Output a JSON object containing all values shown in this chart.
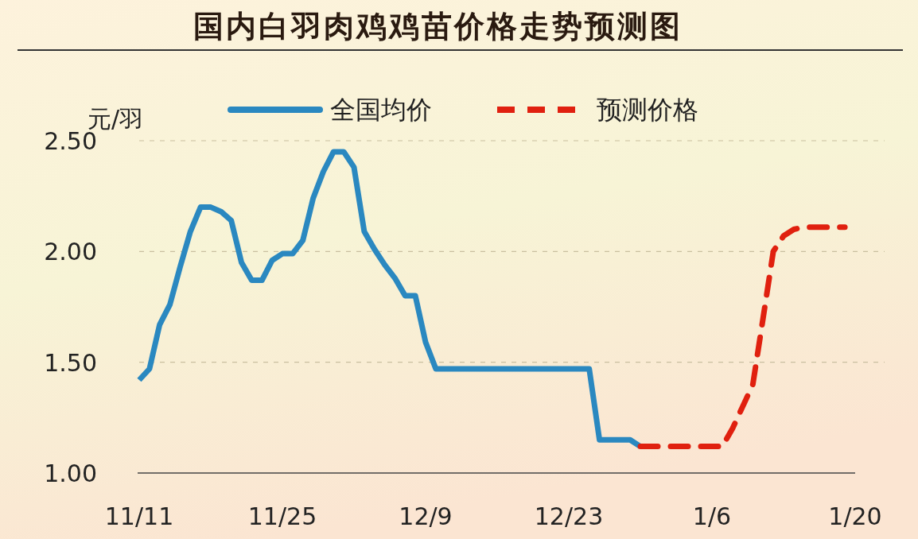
{
  "chart_data": {
    "type": "line",
    "title": "国内白羽肉鸡鸡苗价格走势预测图",
    "ylabel": "元/羽",
    "categories": [
      "11/11",
      null,
      null,
      null,
      null,
      null,
      null,
      null,
      null,
      null,
      null,
      null,
      null,
      null,
      "11/25",
      null,
      null,
      null,
      null,
      null,
      null,
      null,
      null,
      null,
      null,
      null,
      null,
      null,
      "12/9",
      null,
      null,
      null,
      null,
      null,
      null,
      null,
      null,
      null,
      null,
      null,
      null,
      null,
      "12/23",
      null,
      null,
      null,
      null,
      null,
      null,
      null,
      null,
      null,
      null,
      null,
      null,
      null,
      "1/6",
      null,
      null,
      null,
      null,
      null,
      null,
      null,
      null,
      null,
      null,
      null,
      null,
      null,
      "1/20"
    ],
    "ylim": [
      1,
      2.5
    ],
    "yticks": [
      {
        "value": 1,
        "label": "1.00"
      },
      {
        "value": 1.5,
        "label": "1.50"
      },
      {
        "value": 2,
        "label": "2.00"
      },
      {
        "value": 2.5,
        "label": "2.50"
      }
    ],
    "grid": "y",
    "legend": "top",
    "marker": "none",
    "series": [
      {
        "name": "全国均价",
        "color": "#2a88c0",
        "line_style": "solid",
        "values": [
          1.42,
          1.47,
          1.67,
          1.76,
          1.93,
          2.09,
          2.2,
          2.2,
          2.18,
          2.14,
          1.95,
          1.87,
          1.87,
          1.96,
          1.99,
          1.99,
          2.05,
          2.24,
          2.36,
          2.45,
          2.45,
          2.38,
          2.09,
          2.01,
          1.94,
          1.88,
          1.8,
          1.8,
          1.59,
          1.47,
          1.47,
          1.47,
          1.47,
          1.47,
          1.47,
          1.47,
          1.47,
          1.47,
          1.47,
          1.47,
          1.47,
          1.47,
          1.47,
          1.47,
          1.47,
          1.15,
          1.15,
          1.15,
          1.15,
          1.12,
          null,
          null,
          null,
          null,
          null,
          null,
          null,
          null,
          null,
          null,
          null,
          null,
          null,
          null,
          null,
          null,
          null,
          null,
          null,
          null,
          null
        ]
      },
      {
        "name": "预测价格",
        "color": "#e0200f",
        "line_style": "dashed",
        "values": [
          null,
          null,
          null,
          null,
          null,
          null,
          null,
          null,
          null,
          null,
          null,
          null,
          null,
          null,
          null,
          null,
          null,
          null,
          null,
          null,
          null,
          null,
          null,
          null,
          null,
          null,
          null,
          null,
          null,
          null,
          null,
          null,
          null,
          null,
          null,
          null,
          null,
          null,
          null,
          null,
          null,
          null,
          null,
          null,
          null,
          null,
          null,
          null,
          null,
          1.12,
          1.12,
          1.12,
          1.12,
          1.12,
          1.12,
          1.12,
          1.12,
          1.12,
          1.2,
          1.3,
          1.4,
          1.7,
          2.0,
          2.07,
          2.1,
          2.11,
          2.11,
          2.11,
          2.11,
          2.11,
          null
        ]
      }
    ]
  }
}
